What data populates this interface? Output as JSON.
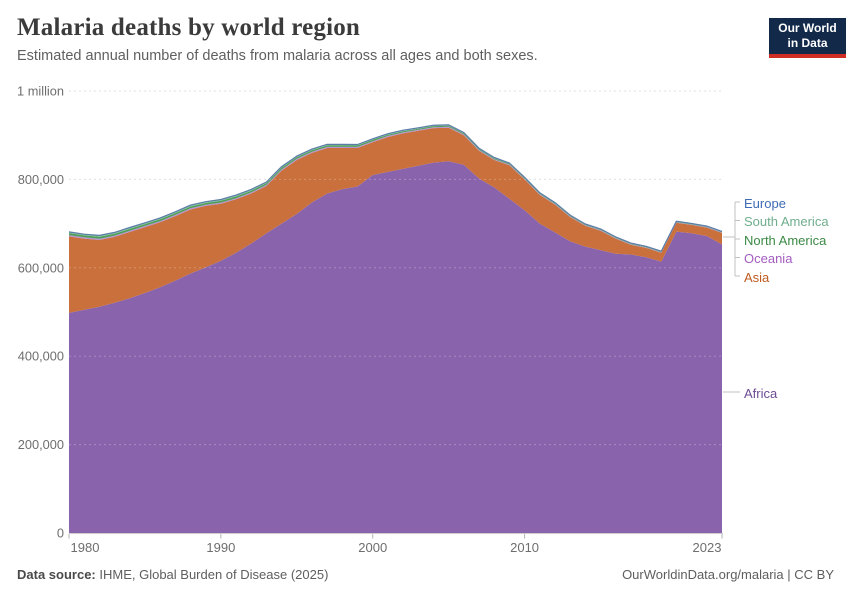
{
  "header": {
    "title": "Malaria deaths by world region",
    "subtitle": "Estimated annual number of deaths from malaria across all ages and both sexes."
  },
  "logo": {
    "line1": "Our World",
    "line2": "in Data",
    "bg_color": "#12294a",
    "accent_color": "#cf2e24"
  },
  "footer": {
    "source_prefix": "Data source:",
    "source_text": " IHME, Global Burden of Disease (2025)",
    "right_text": "OurWorldinData.org/malaria | CC BY"
  },
  "chart_data": {
    "type": "area",
    "stacked": true,
    "title": "Malaria deaths by world region",
    "xlabel": "",
    "ylabel": "",
    "unit": "deaths",
    "ylim": [
      0,
      1000000
    ],
    "xlim": [
      1980,
      2023
    ],
    "grid": true,
    "legend_position": "right",
    "outline_color": "#5b7ca8",
    "grid_color": "#d9d9d9",
    "axis_color": "#cccccc",
    "tick_text_color": "#6e6e6e",
    "years": [
      1980,
      1981,
      1982,
      1983,
      1984,
      1985,
      1986,
      1987,
      1988,
      1989,
      1990,
      1991,
      1992,
      1993,
      1994,
      1995,
      1996,
      1997,
      1998,
      1999,
      2000,
      2001,
      2002,
      2003,
      2004,
      2005,
      2006,
      2007,
      2008,
      2009,
      2010,
      2011,
      2012,
      2013,
      2014,
      2015,
      2016,
      2017,
      2018,
      2019,
      2020,
      2021,
      2022,
      2023
    ],
    "y_ticks": [
      {
        "value": 0,
        "label": "0"
      },
      {
        "value": 200000,
        "label": "200,000"
      },
      {
        "value": 400000,
        "label": "400,000"
      },
      {
        "value": 600000,
        "label": "600,000"
      },
      {
        "value": 800000,
        "label": "800,000"
      },
      {
        "value": 1000000,
        "label": "1 million"
      }
    ],
    "x_ticks": [
      {
        "value": 1980,
        "label": "1980"
      },
      {
        "value": 1990,
        "label": "1990"
      },
      {
        "value": 2000,
        "label": "2000"
      },
      {
        "value": 2010,
        "label": "2010"
      },
      {
        "value": 2023,
        "label": "2023"
      }
    ],
    "series": [
      {
        "id": "africa",
        "name": "Africa",
        "fill_color": "#8a63ad",
        "label_color": "#6d4b93",
        "values": [
          498000,
          505000,
          512000,
          521000,
          531000,
          543000,
          556000,
          571000,
          587000,
          601000,
          616000,
          634000,
          655000,
          678000,
          700000,
          722000,
          748000,
          768000,
          778000,
          784000,
          810000,
          817000,
          824000,
          831000,
          838000,
          841000,
          833000,
          802000,
          782000,
          756000,
          730000,
          700000,
          680000,
          660000,
          648000,
          640000,
          632000,
          630000,
          624000,
          614000,
          682000,
          678000,
          672000,
          653000
        ]
      },
      {
        "id": "asia",
        "name": "Asia",
        "fill_color": "#c9703c",
        "label_color": "#bf5b1f",
        "values": [
          173000,
          161000,
          151000,
          149000,
          150000,
          149000,
          147000,
          146000,
          145000,
          139000,
          129000,
          121000,
          113000,
          107000,
          120000,
          122000,
          112000,
          103000,
          93000,
          87000,
          74000,
          79000,
          80000,
          79000,
          78000,
          76000,
          67000,
          63000,
          62000,
          76000,
          70000,
          65000,
          63000,
          55000,
          47000,
          44000,
          34000,
          22000,
          21000,
          20000,
          20000,
          19000,
          19000,
          26000
        ]
      },
      {
        "id": "oceania",
        "name": "Oceania",
        "fill_color": "#b88fd0",
        "label_color": "#a45cc0",
        "values": [
          3000,
          2900,
          2900,
          2800,
          2800,
          2700,
          2700,
          2600,
          2600,
          2500,
          2500,
          2500,
          2500,
          2500,
          2500,
          2500,
          2500,
          2500,
          2500,
          2500,
          2500,
          2400,
          2300,
          2200,
          2100,
          2000,
          1900,
          1800,
          1700,
          1600,
          1500,
          1500,
          1400,
          1400,
          1300,
          1300,
          1200,
          1200,
          1100,
          1100,
          1000,
          1000,
          1000,
          1000
        ]
      },
      {
        "id": "north_america",
        "name": "North America",
        "fill_color": "#4f9e57",
        "label_color": "#3a8a44",
        "values": [
          4500,
          4400,
          4400,
          4300,
          4300,
          4200,
          4200,
          4100,
          4100,
          4000,
          4000,
          3900,
          3800,
          3700,
          3600,
          3500,
          3400,
          3300,
          3200,
          3100,
          3000,
          2800,
          2700,
          2500,
          2400,
          2200,
          2100,
          2000,
          1900,
          1700,
          1500,
          1400,
          1400,
          1300,
          1300,
          1200,
          1200,
          1100,
          1100,
          1000,
          1000,
          900,
          900,
          800
        ]
      },
      {
        "id": "south_america",
        "name": "South America",
        "fill_color": "#85c2a3",
        "label_color": "#6fae8d",
        "values": [
          2000,
          2000,
          2100,
          2100,
          2200,
          2200,
          2200,
          2300,
          2300,
          2300,
          2300,
          2200,
          2200,
          2100,
          2100,
          2000,
          1900,
          1800,
          1700,
          1600,
          1500,
          1400,
          1400,
          1300,
          1300,
          1200,
          1200,
          1100,
          1100,
          1000,
          1000,
          900,
          900,
          800,
          800,
          800,
          700,
          700,
          700,
          600,
          600,
          600,
          600,
          600
        ]
      },
      {
        "id": "europe",
        "name": "Europe",
        "fill_color": "#4f74b3",
        "label_color": "#3d6bb5",
        "values": [
          800,
          800,
          800,
          800,
          800,
          800,
          800,
          800,
          800,
          800,
          800,
          800,
          800,
          800,
          800,
          800,
          800,
          800,
          800,
          800,
          800,
          800,
          800,
          800,
          800,
          800,
          800,
          800,
          800,
          800,
          800,
          800,
          800,
          800,
          800,
          800,
          800,
          800,
          800,
          800,
          800,
          800,
          800,
          800
        ]
      }
    ],
    "legend_order_top_to_bottom": [
      "Europe",
      "South America",
      "North America",
      "Oceania",
      "Asia",
      "Africa"
    ]
  }
}
